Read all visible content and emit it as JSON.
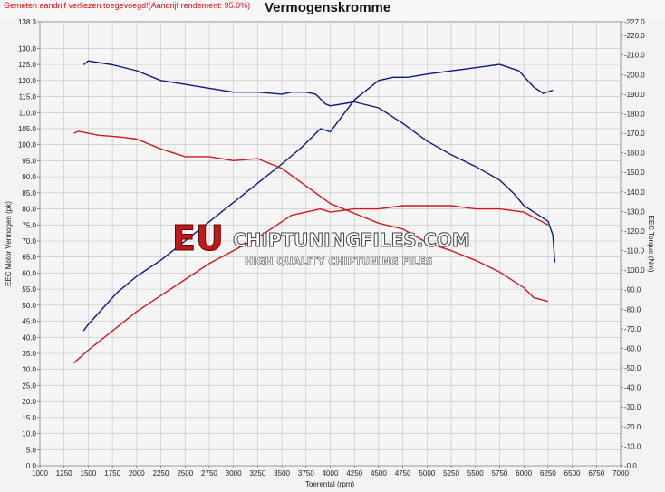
{
  "header": {
    "warning": "Gemeten aandrijf verliezen toegevoegd!(Aandrijf rendement: 95.0%)",
    "title": "Vermogenskromme"
  },
  "watermark": {
    "brand": "EU",
    "site": "CHIPTUNINGFILES.COM",
    "tagline": "HIGH QUALITY CHIPTUNING FILES"
  },
  "colors": {
    "tuned": "#0b1a80",
    "stock": "#cc1a1a",
    "grid": "#c4c4c4"
  },
  "chart_data": {
    "type": "line",
    "title": "Vermogenskromme",
    "xlabel": "Toerental (rpm)",
    "ylabel": "EEC Motor Vermogen (pk)",
    "y2label": "EEC Torque (Nm)",
    "xlim": [
      1000,
      7000
    ],
    "ylim": [
      0,
      138.3
    ],
    "y2lim": [
      0,
      227.0
    ],
    "grid": true,
    "xticks": [
      "1000",
      "1250",
      "1500",
      "1750",
      "2000",
      "2250",
      "2500",
      "2750",
      "3000",
      "3250",
      "3500",
      "3750",
      "4000",
      "4250",
      "4500",
      "4750",
      "5000",
      "5250",
      "5500",
      "5750",
      "6000",
      "6250",
      "6500",
      "6750",
      "7000"
    ],
    "yticks": [
      "0.0",
      "5.0",
      "10.0",
      "15.0",
      "20.0",
      "25.0",
      "30.0",
      "35.0",
      "40.0",
      "45.0",
      "50.0",
      "55.0",
      "60.0",
      "65.0",
      "70.0",
      "75.0",
      "80.0",
      "85.0",
      "90.0",
      "95.0",
      "100.0",
      "105.0",
      "110.0",
      "115.0",
      "120.0",
      "125.0",
      "130.0",
      "138.3"
    ],
    "y2ticks": [
      "-0.0",
      "-10.0",
      "-20.0",
      "-30.0",
      "-40.0",
      "-50.0",
      "-60.0",
      "-70.0",
      "-80.0",
      "-90.0",
      "-100.0",
      "-110.0",
      "-120.0",
      "-130.0",
      "-140.0",
      "-150.0",
      "-160.0",
      "-170.0",
      "-180.0",
      "-190.0",
      "-200.0",
      "-210.0",
      "-220.0",
      "-227.0"
    ],
    "series": [
      {
        "color": "#0b1a80",
        "axis": "left",
        "x": [
          1450,
          1500,
          1650,
          1800,
          2000,
          2250,
          2500,
          2750,
          3000,
          3250,
          3500,
          3700,
          3900,
          4000,
          4100,
          4250,
          4500,
          4650,
          4800,
          5000,
          5250,
          5500,
          5750,
          5950,
          6100,
          6200,
          6300
        ],
        "y": [
          42,
          44,
          49,
          54,
          59,
          64,
          70,
          76,
          82,
          88,
          94,
          99,
          105,
          104,
          108,
          114,
          120,
          121,
          121,
          122,
          123,
          124,
          125,
          123,
          118,
          116,
          117
        ]
      },
      {
        "color": "#0b1a80",
        "axis": "right",
        "x": [
          1450,
          1500,
          1750,
          2000,
          2250,
          2500,
          2750,
          3000,
          3250,
          3500,
          3600,
          3750,
          3850,
          3950,
          4000,
          4250,
          4500,
          4750,
          5000,
          5250,
          5500,
          5750,
          5900,
          6000,
          6250,
          6300,
          6320
        ],
        "y": [
          205,
          207,
          205,
          202,
          197,
          195,
          193,
          191,
          191,
          190,
          191,
          191,
          190,
          185,
          184,
          186,
          183,
          175,
          166,
          159,
          153,
          146,
          139,
          133,
          125,
          118,
          104
        ]
      },
      {
        "color": "#cc1a1a",
        "axis": "left",
        "x": [
          1350,
          1500,
          1750,
          2000,
          2250,
          2500,
          2750,
          3000,
          3250,
          3500,
          3600,
          3750,
          3900,
          4000,
          4250,
          4500,
          4750,
          5000,
          5250,
          5500,
          5750,
          6000,
          6250
        ],
        "y": [
          32,
          36,
          42,
          48,
          53,
          58,
          63,
          67,
          71,
          76,
          78,
          79,
          80,
          79,
          80,
          80,
          81,
          81,
          81,
          80,
          80,
          79,
          75
        ]
      },
      {
        "color": "#cc1a1a",
        "axis": "right",
        "x": [
          1350,
          1400,
          1600,
          1850,
          2000,
          2250,
          2500,
          2750,
          3000,
          3250,
          3500,
          3750,
          4000,
          4250,
          4500,
          4750,
          5000,
          5250,
          5500,
          5750,
          6000,
          6100,
          6250
        ],
        "y": [
          170,
          171,
          169,
          168,
          167,
          162,
          158,
          158,
          156,
          157,
          152,
          143,
          134,
          129,
          124,
          121,
          114,
          110,
          105,
          99,
          91,
          86,
          84
        ]
      }
    ]
  }
}
